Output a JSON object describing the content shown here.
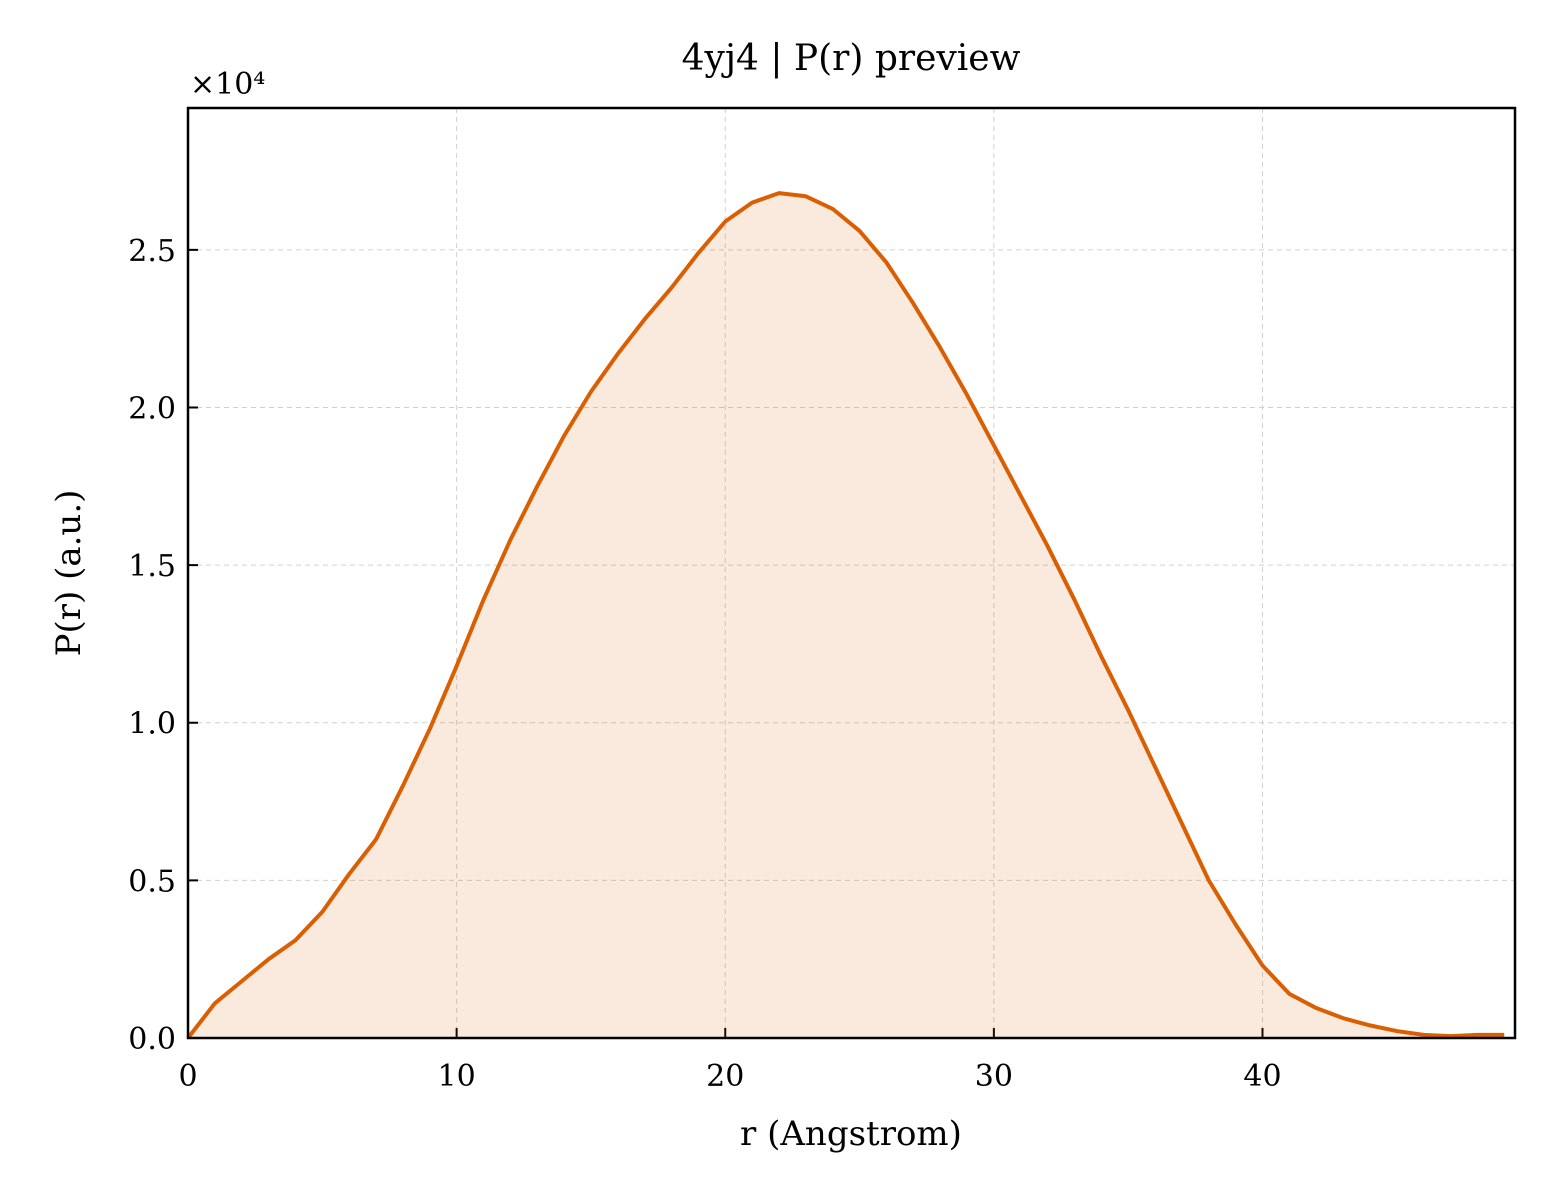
{
  "chart_data": {
    "type": "line",
    "title": "4yj4 | P(r) preview",
    "xlabel": "r (Angstrom)",
    "ylabel": "P(r) (a.u.)",
    "y_offset_label": "×10⁴",
    "x": [
      0,
      1,
      2,
      3,
      4,
      5,
      6,
      7,
      8,
      9,
      10,
      11,
      12,
      13,
      14,
      15,
      16,
      17,
      18,
      19,
      20,
      21,
      22,
      23,
      24,
      25,
      26,
      27,
      28,
      29,
      30,
      31,
      32,
      33,
      34,
      35,
      36,
      37,
      38,
      39,
      40,
      41,
      42,
      43,
      44,
      45,
      46,
      47,
      48,
      49
    ],
    "series": [
      {
        "name": "P(r)",
        "color": "#d95f02",
        "values": [
          0,
          0.11,
          0.18,
          0.25,
          0.31,
          0.4,
          0.52,
          0.63,
          0.8,
          0.98,
          1.18,
          1.39,
          1.58,
          1.75,
          1.91,
          2.05,
          2.17,
          2.28,
          2.38,
          2.49,
          2.59,
          2.65,
          2.68,
          2.67,
          2.63,
          2.56,
          2.46,
          2.33,
          2.19,
          2.04,
          1.88,
          1.72,
          1.56,
          1.39,
          1.21,
          1.04,
          0.86,
          0.68,
          0.5,
          0.36,
          0.23,
          0.14,
          0.095,
          0.063,
          0.04,
          0.022,
          0.01,
          0.006,
          0.01,
          0.01
        ]
      }
    ],
    "fill": true,
    "xlim": [
      0,
      49.4
    ],
    "ylim": [
      0,
      2.95
    ],
    "xticks": [
      0,
      10,
      20,
      30,
      40
    ],
    "yticks": [
      {
        "value": 0,
        "label": "0.0"
      },
      0.5,
      {
        "value": 1,
        "label": "1.0"
      },
      1.5,
      {
        "value": 2,
        "label": "2.0"
      },
      2.5
    ],
    "grid": true
  }
}
